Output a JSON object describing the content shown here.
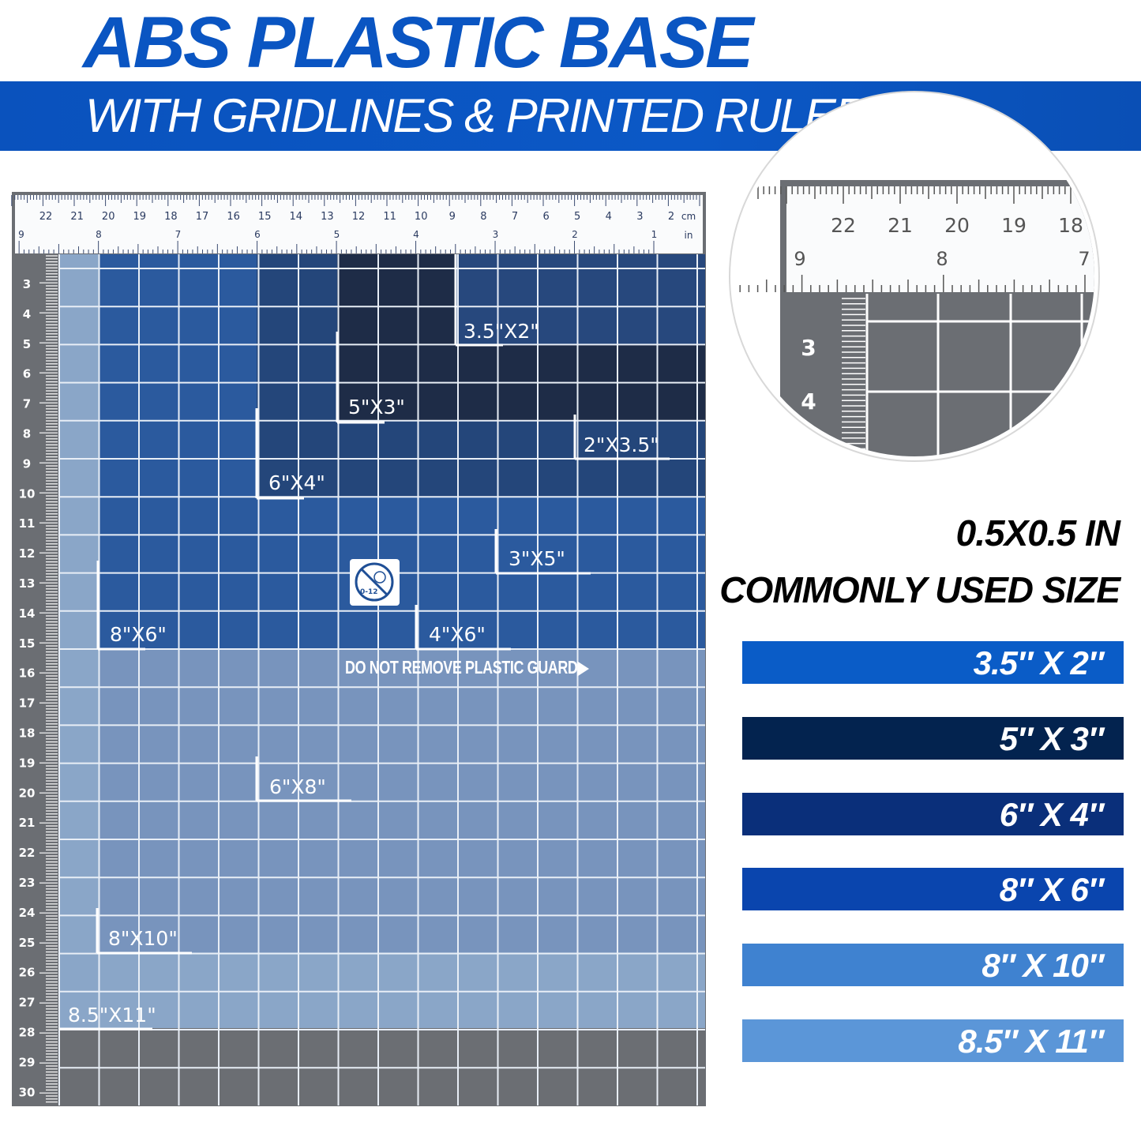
{
  "header": {
    "title": "ABS PLASTIC BASE",
    "subtitle": "WITH GRIDLINES & PRINTED RULER"
  },
  "mat": {
    "ruler_cm": [
      "22",
      "21",
      "20",
      "19",
      "18",
      "17",
      "16",
      "15",
      "14",
      "13",
      "12",
      "11",
      "10",
      "9",
      "8",
      "7",
      "6",
      "5",
      "4",
      "3",
      "2"
    ],
    "cm_unit": "cm",
    "ruler_in": [
      "9",
      "8",
      "7",
      "6",
      "5",
      "4",
      "3",
      "2",
      "1"
    ],
    "in_unit": "in",
    "side_cm": [
      "3",
      "4",
      "5",
      "6",
      "7",
      "8",
      "9",
      "10",
      "11",
      "12",
      "13",
      "14",
      "15",
      "16",
      "17",
      "18",
      "19",
      "20",
      "21",
      "22",
      "23",
      "24",
      "25",
      "26",
      "27",
      "28",
      "29",
      "30"
    ],
    "size_labels": [
      "3.5\"X2\"",
      "5\"X3\"",
      "6\"X4\"",
      "2\"X3.5\"",
      "3\"X5\"",
      "4\"X6\"",
      "8\"X6\"",
      "6\"X8\"",
      "8\"X10\"",
      "8.5\"X11\""
    ],
    "warning": "DO NOT REMOVE PLASTIC GUARD▶",
    "age_icon": "no-children-0-12-icon",
    "age_text": "0-12",
    "colors": {
      "light": "#8aa6c8",
      "mid": "#7894bd",
      "blue": "#2b5a9e",
      "navy": "#24467a",
      "dark": "#1e2c47",
      "gray": "#6b6e73"
    }
  },
  "magnifier": {
    "cm": [
      "22",
      "21",
      "20",
      "19",
      "18"
    ],
    "in": [
      "9",
      "8",
      "7"
    ],
    "side": [
      "3",
      "4"
    ]
  },
  "specs": {
    "grid_size": "0.5X0.5 IN",
    "heading": "COMMONLY USED SIZE",
    "sizes": [
      {
        "label": "3.5″ X 2″",
        "color": "#0a5cc7"
      },
      {
        "label": "5″ X 3″",
        "color": "#03234f"
      },
      {
        "label": "6″ X 4″",
        "color": "#0a2f7a"
      },
      {
        "label": "8″ X 6″",
        "color": "#0a45ae"
      },
      {
        "label": "8″ X 10″",
        "color": "#3f82d0"
      },
      {
        "label": "8.5″ X 11″",
        "color": "#5b96d8"
      }
    ]
  }
}
